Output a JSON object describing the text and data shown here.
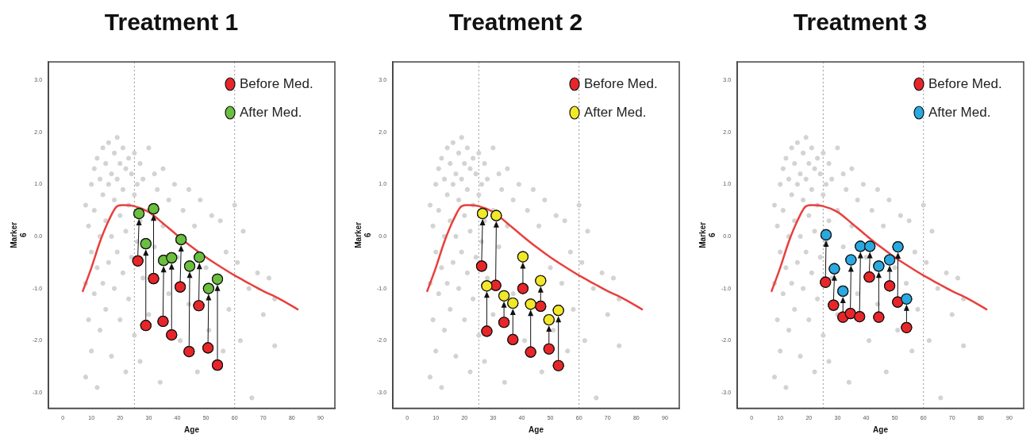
{
  "chart_data": [
    {
      "type": "scatter",
      "title": "Treatment 1",
      "xlabel": "Age",
      "ylabel": "Marker\n6",
      "xlim": [
        -5,
        95
      ],
      "ylim": [
        -3.3,
        3.35
      ],
      "xticks": [
        0,
        10,
        20,
        30,
        40,
        50,
        60,
        70,
        80,
        90
      ],
      "yticks": [
        {
          "value": -3,
          "label": "-3.0"
        },
        {
          "value": -2,
          "label": "-2.0"
        },
        {
          "value": -1,
          "label": "-1.0"
        },
        {
          "value": 0,
          "label": "0.0"
        },
        {
          "value": 1,
          "label": "1.0"
        },
        {
          "value": 2,
          "label": "2.0"
        },
        {
          "value": 3,
          "label": "3.0"
        }
      ],
      "grid": false,
      "legend": "top right",
      "marker": "circle",
      "ref_lines": [
        {
          "axis": "x",
          "value": 25,
          "color": "#999999",
          "line_style": "dotted"
        },
        {
          "axis": "x",
          "value": 60,
          "color": "#999999",
          "line_style": "dotted"
        }
      ],
      "series": [
        {
          "type": "scatter",
          "color": "#d3d3d3",
          "x": [
            8,
            8,
            8,
            9,
            9,
            10,
            10,
            10,
            11,
            11,
            11,
            12,
            12,
            12,
            13,
            13,
            13,
            14,
            14,
            14,
            15,
            15,
            15,
            16,
            16,
            16,
            17,
            17,
            17,
            18,
            18,
            18,
            19,
            19,
            19,
            20,
            20,
            20,
            21,
            21,
            21,
            22,
            22,
            22,
            23,
            23,
            23,
            24,
            24,
            25,
            25,
            25,
            26,
            26,
            27,
            27,
            27,
            28,
            28,
            30,
            30,
            30,
            32,
            32,
            33,
            34,
            35,
            35,
            37,
            37,
            39,
            40,
            41,
            42,
            44,
            44,
            46,
            47,
            48,
            50,
            51,
            52,
            54,
            55,
            56,
            57,
            58,
            60,
            61,
            62,
            63,
            65,
            66,
            68,
            70,
            72,
            74,
            74
          ],
          "values": [
            0.6,
            -0.9,
            -2.7,
            0.2,
            -1.6,
            1.0,
            -0.3,
            -2.2,
            1.3,
            0.5,
            -1.1,
            1.5,
            -0.6,
            -2.9,
            1.1,
            0.0,
            -1.8,
            1.7,
            0.8,
            -0.9,
            1.4,
            0.3,
            -1.4,
            1.8,
            1.0,
            -0.5,
            1.2,
            0.0,
            -2.3,
            1.6,
            0.7,
            -1.0,
            1.9,
            1.1,
            -0.3,
            1.4,
            0.4,
            -1.6,
            1.7,
            0.9,
            -0.7,
            1.3,
            0.1,
            -2.6,
            1.5,
            0.6,
            -1.2,
            1.2,
            -0.4,
            1.6,
            0.8,
            -1.9,
            1.0,
            -0.1,
            1.4,
            0.3,
            -2.4,
            1.1,
            -0.8,
            1.7,
            0.5,
            -1.5,
            1.2,
            -0.2,
            0.9,
            -2.8,
            1.3,
            0.2,
            0.7,
            -1.1,
            1.0,
            -0.4,
            -2.0,
            0.5,
            0.9,
            -1.3,
            0.2,
            -2.6,
            0.7,
            -0.6,
            -1.8,
            0.4,
            -0.9,
            0.3,
            -2.2,
            -0.3,
            -1.4,
            0.6,
            -0.5,
            -2.0,
            0.1,
            -1.0,
            -3.1,
            -0.7,
            -1.5,
            -0.8,
            -1.2,
            -2.1
          ]
        },
        {
          "type": "line",
          "marker": "none",
          "color": "#e8403c",
          "x": [
            7,
            10,
            13,
            16,
            19,
            21,
            25,
            30,
            35,
            40,
            45,
            50,
            55,
            60,
            65,
            70,
            75,
            82
          ],
          "values": [
            -1.05,
            -0.6,
            -0.1,
            0.3,
            0.58,
            0.6,
            0.58,
            0.47,
            0.25,
            0.02,
            -0.2,
            -0.4,
            -0.58,
            -0.75,
            -0.9,
            -1.05,
            -1.18,
            -1.4
          ]
        },
        {
          "type": "scatter",
          "name": "Before Med.",
          "color": "#e8262a",
          "x": [
            26.2,
            29,
            31.7,
            35,
            38,
            41,
            44.1,
            47.5,
            50.7,
            54
          ],
          "values": [
            -0.47,
            -1.71,
            -0.81,
            -1.63,
            -1.89,
            -0.97,
            -2.21,
            -1.33,
            -2.14,
            -2.47
          ]
        },
        {
          "type": "scatter",
          "name": "After Med.",
          "color": "#6abf3f",
          "x": [
            26.6,
            29,
            31.7,
            35.2,
            38,
            41.3,
            44.3,
            47.7,
            50.9,
            54
          ],
          "values": [
            0.44,
            -0.14,
            0.53,
            -0.46,
            -0.41,
            -0.06,
            -0.57,
            -0.4,
            -1.0,
            -0.82
          ]
        }
      ]
    },
    {
      "type": "scatter",
      "title": "Treatment 2",
      "xlabel": "Age",
      "ylabel": "Marker\n6",
      "xlim": [
        -5,
        95
      ],
      "ylim": [
        -3.3,
        3.35
      ],
      "xticks": [
        0,
        10,
        20,
        30,
        40,
        50,
        60,
        70,
        80,
        90
      ],
      "yticks": [
        {
          "value": -3,
          "label": "-3.0"
        },
        {
          "value": -2,
          "label": "-2.0"
        },
        {
          "value": -1,
          "label": "-1.0"
        },
        {
          "value": 0,
          "label": "0.0"
        },
        {
          "value": 1,
          "label": "1.0"
        },
        {
          "value": 2,
          "label": "2.0"
        },
        {
          "value": 3,
          "label": "3.0"
        }
      ],
      "grid": false,
      "legend": "top right",
      "marker": "circle",
      "ref_lines": [
        {
          "axis": "x",
          "value": 25,
          "color": "#999999",
          "line_style": "dotted"
        },
        {
          "axis": "x",
          "value": 60,
          "color": "#999999",
          "line_style": "dotted"
        }
      ],
      "series": [
        {
          "type": "scatter",
          "color": "#d3d3d3",
          "x": [
            8,
            8,
            8,
            9,
            9,
            10,
            10,
            10,
            11,
            11,
            11,
            12,
            12,
            12,
            13,
            13,
            13,
            14,
            14,
            14,
            15,
            15,
            15,
            16,
            16,
            16,
            17,
            17,
            17,
            18,
            18,
            18,
            19,
            19,
            19,
            20,
            20,
            20,
            21,
            21,
            21,
            22,
            22,
            22,
            23,
            23,
            23,
            24,
            24,
            25,
            25,
            25,
            26,
            26,
            27,
            27,
            27,
            28,
            28,
            30,
            30,
            30,
            32,
            32,
            33,
            34,
            35,
            35,
            37,
            37,
            39,
            41,
            42,
            44,
            46,
            47,
            48,
            50,
            51,
            52,
            54,
            55,
            56,
            57,
            58,
            60,
            61,
            62,
            63,
            65,
            66,
            68,
            70,
            72,
            74,
            74
          ],
          "values": [
            0.6,
            -0.9,
            -2.7,
            0.2,
            -1.6,
            1.0,
            -0.3,
            -2.2,
            1.3,
            0.5,
            -1.1,
            1.5,
            -0.6,
            -2.9,
            1.1,
            0.0,
            -1.8,
            1.7,
            0.8,
            -0.9,
            1.4,
            0.3,
            -1.4,
            1.8,
            1.0,
            -0.5,
            1.2,
            0.0,
            -2.3,
            1.6,
            0.7,
            -1.0,
            1.9,
            1.1,
            -0.3,
            1.4,
            0.4,
            -1.6,
            1.7,
            0.9,
            -0.7,
            1.3,
            0.1,
            -2.6,
            1.5,
            0.6,
            -1.2,
            1.2,
            -0.4,
            1.6,
            0.8,
            -1.9,
            1.0,
            -0.1,
            1.4,
            0.3,
            -2.4,
            1.1,
            -0.8,
            1.7,
            0.5,
            -1.5,
            1.2,
            -0.2,
            0.9,
            -2.8,
            1.3,
            0.2,
            0.7,
            -1.1,
            1.0,
            -2.0,
            0.5,
            0.9,
            0.2,
            -2.6,
            0.7,
            -0.6,
            -1.8,
            0.4,
            -0.9,
            0.3,
            -2.2,
            -0.3,
            -1.4,
            0.6,
            -0.5,
            -2.0,
            0.1,
            -1.0,
            -3.1,
            -0.7,
            -1.5,
            -0.8,
            -1.2,
            -2.1
          ]
        },
        {
          "type": "line",
          "marker": "none",
          "color": "#e8403c",
          "x": [
            7,
            10,
            13,
            16,
            19,
            21,
            25,
            30,
            35,
            40,
            45,
            50,
            55,
            60,
            65,
            70,
            75,
            82
          ],
          "values": [
            -1.05,
            -0.6,
            -0.1,
            0.3,
            0.58,
            0.6,
            0.58,
            0.47,
            0.25,
            0.02,
            -0.2,
            -0.4,
            -0.58,
            -0.75,
            -0.9,
            -1.05,
            -1.18,
            -1.4
          ]
        },
        {
          "type": "scatter",
          "name": "Before Med.",
          "color": "#e8262a",
          "x": [
            26,
            27.8,
            30.9,
            33.8,
            36.9,
            40.4,
            43.1,
            46.6,
            49.5,
            52.8
          ],
          "values": [
            -0.57,
            -1.82,
            -0.94,
            -1.65,
            -1.98,
            -1.0,
            -2.22,
            -1.34,
            -2.16,
            -2.48
          ]
        },
        {
          "type": "scatter",
          "name": "After Med.",
          "color": "#f2e829",
          "x": [
            26.3,
            27.8,
            31.1,
            33.8,
            36.9,
            40.4,
            43.1,
            46.6,
            49.5,
            52.8
          ],
          "values": [
            0.44,
            -0.95,
            0.4,
            -1.14,
            -1.28,
            -0.39,
            -1.3,
            -0.85,
            -1.6,
            -1.42
          ]
        }
      ]
    },
    {
      "type": "scatter",
      "title": "Treatment 3",
      "xlabel": "Age",
      "ylabel": "Marker\n6",
      "xlim": [
        -5,
        95
      ],
      "ylim": [
        -3.3,
        3.35
      ],
      "xticks": [
        0,
        10,
        20,
        30,
        40,
        50,
        60,
        70,
        80,
        90
      ],
      "yticks": [
        {
          "value": -3,
          "label": "-3.0"
        },
        {
          "value": -2,
          "label": "-2.0"
        },
        {
          "value": -1,
          "label": "-1.0"
        },
        {
          "value": 0,
          "label": "0.0"
        },
        {
          "value": 1,
          "label": "1.0"
        },
        {
          "value": 2,
          "label": "2.0"
        },
        {
          "value": 3,
          "label": "3.0"
        }
      ],
      "grid": false,
      "legend": "top right",
      "marker": "circle",
      "ref_lines": [
        {
          "axis": "x",
          "value": 25,
          "color": "#999999",
          "line_style": "dotted"
        },
        {
          "axis": "x",
          "value": 60,
          "color": "#999999",
          "line_style": "dotted"
        }
      ],
      "series": [
        {
          "type": "scatter",
          "color": "#d3d3d3",
          "x": [
            8,
            8,
            8,
            9,
            9,
            10,
            10,
            10,
            11,
            11,
            11,
            12,
            12,
            12,
            13,
            13,
            13,
            14,
            14,
            14,
            15,
            15,
            15,
            16,
            16,
            16,
            17,
            17,
            17,
            18,
            18,
            18,
            19,
            19,
            19,
            20,
            20,
            20,
            21,
            21,
            21,
            22,
            22,
            22,
            23,
            23,
            23,
            24,
            24,
            25,
            25,
            25,
            26,
            26,
            27,
            27,
            27,
            28,
            28,
            30,
            30,
            30,
            32,
            32,
            33,
            34,
            35,
            35,
            37,
            37,
            39,
            40,
            41,
            42,
            44,
            44,
            46,
            47,
            48,
            50,
            51,
            52,
            54,
            55,
            56,
            57,
            58,
            60,
            61,
            62,
            63,
            65,
            66,
            68,
            70,
            72,
            74,
            74
          ],
          "values": [
            0.6,
            -0.9,
            -2.7,
            0.2,
            -1.6,
            1.0,
            -0.3,
            -2.2,
            1.3,
            0.5,
            -1.1,
            1.5,
            -0.6,
            -2.9,
            1.1,
            0.0,
            -1.8,
            1.7,
            0.8,
            -0.9,
            1.4,
            0.3,
            -1.4,
            1.8,
            1.0,
            -0.5,
            1.2,
            0.0,
            -2.3,
            1.6,
            0.7,
            -1.0,
            1.9,
            1.1,
            -0.3,
            1.4,
            0.4,
            -1.6,
            1.7,
            0.9,
            -0.7,
            1.3,
            0.1,
            -2.6,
            1.5,
            0.6,
            -1.2,
            1.2,
            -0.4,
            1.6,
            0.8,
            -1.9,
            1.0,
            -0.1,
            1.4,
            0.3,
            -2.4,
            1.1,
            -0.8,
            1.7,
            0.5,
            -1.5,
            1.2,
            -0.2,
            0.9,
            -2.8,
            1.3,
            0.2,
            0.7,
            -1.1,
            1.0,
            -0.4,
            -2.0,
            0.5,
            0.9,
            -1.3,
            0.2,
            -2.6,
            0.7,
            -0.6,
            -1.8,
            0.4,
            -0.9,
            0.3,
            -2.2,
            -0.3,
            -1.4,
            0.6,
            -0.5,
            -2.0,
            0.1,
            -1.0,
            -3.1,
            -0.7,
            -1.5,
            -0.8,
            -1.2,
            -2.1
          ]
        },
        {
          "type": "line",
          "marker": "none",
          "color": "#e8403c",
          "x": [
            7,
            10,
            13,
            16,
            19,
            21,
            25,
            30,
            35,
            40,
            45,
            50,
            55,
            60,
            65,
            70,
            75,
            82
          ],
          "values": [
            -1.05,
            -0.6,
            -0.1,
            0.3,
            0.58,
            0.6,
            0.58,
            0.47,
            0.25,
            0.02,
            -0.2,
            -0.4,
            -0.58,
            -0.75,
            -0.9,
            -1.05,
            -1.18,
            -1.4
          ]
        },
        {
          "type": "scatter",
          "name": "Before Med.",
          "color": "#e8262a",
          "x": [
            25.8,
            28.6,
            31.9,
            34.5,
            37.7,
            41.1,
            44.4,
            48.2,
            51,
            54.1
          ],
          "values": [
            -0.88,
            -1.32,
            -1.55,
            -1.48,
            -1.54,
            -0.78,
            -1.55,
            -0.95,
            -1.26,
            -1.75
          ]
        },
        {
          "type": "scatter",
          "name": "After Med.",
          "color": "#29a9e0",
          "x": [
            26,
            28.9,
            31.9,
            34.7,
            38,
            41.3,
            44.4,
            48.2,
            51.1,
            54.1
          ],
          "values": [
            0.03,
            -0.62,
            -1.05,
            -0.45,
            -0.19,
            -0.19,
            -0.57,
            -0.45,
            -0.2,
            -1.2
          ]
        }
      ]
    }
  ]
}
